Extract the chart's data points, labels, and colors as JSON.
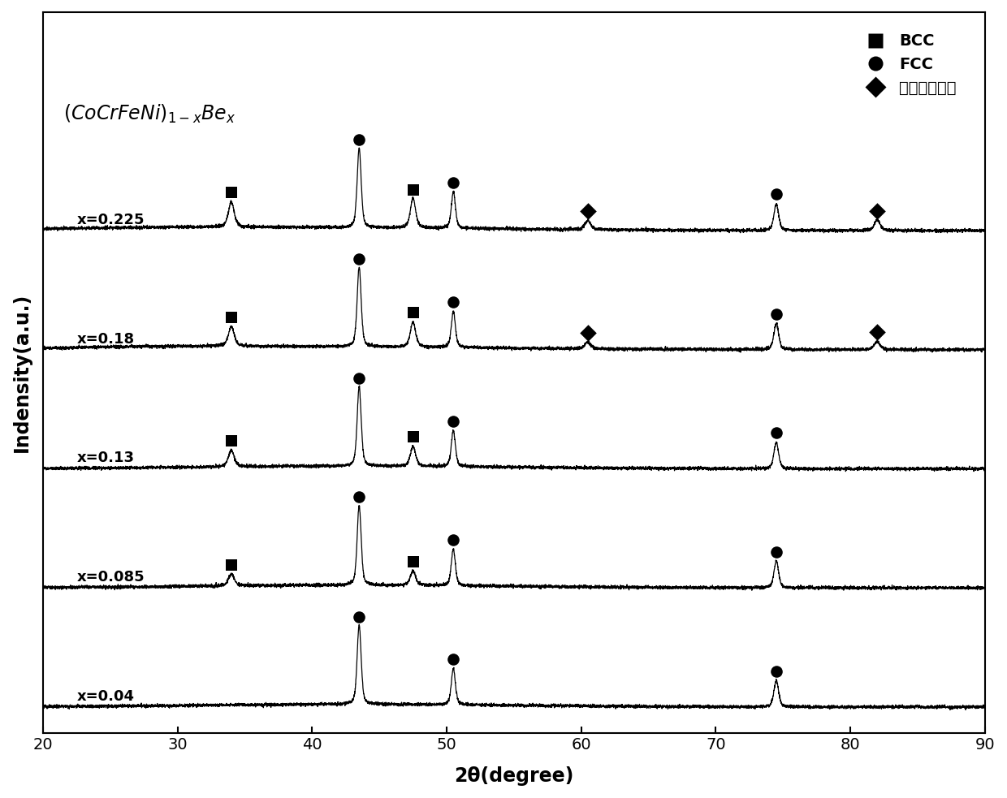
{
  "xlabel": "2θ(degree)",
  "ylabel": "Indensity(a.u.)",
  "xlim": [
    20,
    90
  ],
  "x_ticks": [
    20,
    30,
    40,
    50,
    60,
    70,
    80,
    90
  ],
  "compositions": [
    "x=0.04",
    "x=0.085",
    "x=0.13",
    "x=0.18",
    "x=0.225"
  ],
  "offsets": [
    0.0,
    0.18,
    0.36,
    0.54,
    0.72
  ],
  "peaks": {
    "x=0.04": {
      "FCC": [
        43.5,
        50.5,
        74.5
      ],
      "BCC": [],
      "IMC": []
    },
    "x=0.085": {
      "FCC": [
        43.5,
        50.5,
        74.5
      ],
      "BCC": [
        34.0,
        47.5
      ],
      "IMC": []
    },
    "x=0.13": {
      "FCC": [
        43.5,
        50.5,
        74.5
      ],
      "BCC": [
        34.0,
        47.5
      ],
      "IMC": []
    },
    "x=0.18": {
      "FCC": [
        43.5,
        50.5,
        74.5
      ],
      "BCC": [
        34.0,
        47.5
      ],
      "IMC": [
        60.5,
        82.0
      ]
    },
    "x=0.225": {
      "FCC": [
        43.5,
        50.5,
        74.5
      ],
      "BCC": [
        34.0,
        47.5
      ],
      "IMC": [
        60.5,
        82.0
      ]
    }
  },
  "background_color": "#ffffff",
  "line_color": "#000000"
}
